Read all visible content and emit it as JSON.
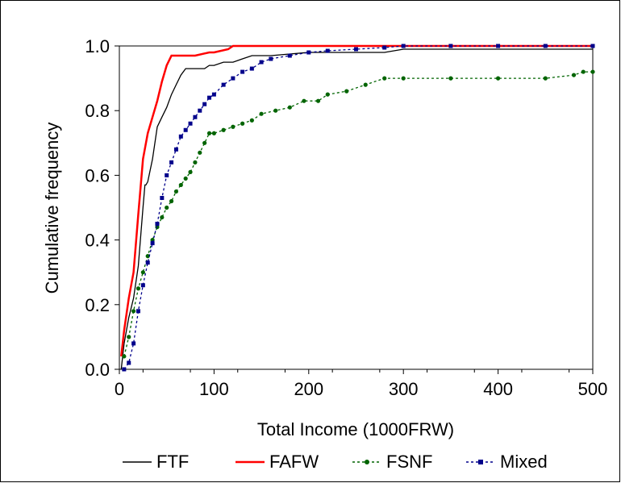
{
  "chart_data": {
    "type": "line",
    "title": "",
    "xlabel": "Total Income (1000FRW)",
    "ylabel": "Cumulative frequency",
    "xlim": [
      0,
      500
    ],
    "ylim": [
      0.0,
      1.0
    ],
    "x_ticks": [
      0,
      100,
      200,
      300,
      400,
      500
    ],
    "x_tick_labels": [
      "0",
      "100",
      "200",
      "300",
      "400",
      "500"
    ],
    "y_ticks": [
      0.0,
      0.2,
      0.4,
      0.6,
      0.8,
      1.0
    ],
    "y_tick_labels": [
      "0.0",
      "0.2",
      "0.4",
      "0.6",
      "0.8",
      "1.0"
    ],
    "grid": false,
    "legend_position": "bottom",
    "series": [
      {
        "name": "FTF",
        "color": "#000000",
        "style": "solid",
        "marker": "none",
        "x": [
          2,
          5,
          10,
          15,
          20,
          25,
          27,
          28,
          30,
          35,
          40,
          45,
          50,
          55,
          60,
          65,
          70,
          80,
          90,
          95,
          100,
          110,
          120,
          130,
          140,
          160,
          200,
          280,
          300,
          400,
          500
        ],
        "y": [
          0.0,
          0.08,
          0.16,
          0.22,
          0.32,
          0.5,
          0.57,
          0.57,
          0.58,
          0.65,
          0.75,
          0.78,
          0.81,
          0.85,
          0.88,
          0.91,
          0.93,
          0.93,
          0.93,
          0.94,
          0.94,
          0.95,
          0.95,
          0.96,
          0.97,
          0.97,
          0.98,
          0.98,
          0.99,
          0.99,
          0.99
        ]
      },
      {
        "name": "FAFW",
        "color": "#ff0000",
        "style": "solid",
        "marker": "none",
        "x": [
          2,
          5,
          10,
          15,
          20,
          25,
          30,
          35,
          40,
          45,
          50,
          55,
          60,
          80,
          95,
          100,
          115,
          120,
          200,
          300,
          500
        ],
        "y": [
          0.04,
          0.12,
          0.22,
          0.3,
          0.48,
          0.65,
          0.73,
          0.78,
          0.83,
          0.89,
          0.94,
          0.97,
          0.97,
          0.97,
          0.98,
          0.98,
          0.99,
          1.0,
          1.0,
          1.0,
          1.0
        ]
      },
      {
        "name": "FSNF",
        "color": "#006400",
        "style": "dashed",
        "marker": "circle",
        "x": [
          5,
          10,
          15,
          20,
          25,
          30,
          35,
          40,
          45,
          50,
          55,
          60,
          65,
          70,
          75,
          80,
          85,
          90,
          95,
          100,
          110,
          120,
          130,
          140,
          150,
          165,
          180,
          195,
          210,
          220,
          240,
          260,
          280,
          300,
          350,
          400,
          450,
          480,
          490,
          500
        ],
        "y": [
          0.04,
          0.1,
          0.18,
          0.25,
          0.3,
          0.35,
          0.4,
          0.44,
          0.47,
          0.5,
          0.52,
          0.55,
          0.57,
          0.59,
          0.61,
          0.64,
          0.67,
          0.7,
          0.73,
          0.73,
          0.74,
          0.75,
          0.76,
          0.77,
          0.79,
          0.8,
          0.81,
          0.83,
          0.83,
          0.85,
          0.86,
          0.88,
          0.9,
          0.9,
          0.9,
          0.9,
          0.9,
          0.91,
          0.92,
          0.92
        ]
      },
      {
        "name": "Mixed",
        "color": "#00008b",
        "style": "dashed",
        "marker": "square",
        "x": [
          5,
          10,
          15,
          20,
          25,
          30,
          35,
          40,
          45,
          50,
          55,
          60,
          65,
          70,
          75,
          80,
          85,
          90,
          95,
          100,
          110,
          120,
          130,
          140,
          150,
          160,
          180,
          200,
          220,
          250,
          280,
          300,
          350,
          400,
          450,
          500
        ],
        "y": [
          0.0,
          0.02,
          0.08,
          0.18,
          0.26,
          0.33,
          0.39,
          0.45,
          0.53,
          0.6,
          0.64,
          0.68,
          0.72,
          0.74,
          0.76,
          0.78,
          0.8,
          0.82,
          0.84,
          0.85,
          0.88,
          0.9,
          0.92,
          0.93,
          0.95,
          0.96,
          0.97,
          0.98,
          0.985,
          0.99,
          0.995,
          1.0,
          1.0,
          1.0,
          1.0,
          1.0
        ]
      }
    ]
  }
}
